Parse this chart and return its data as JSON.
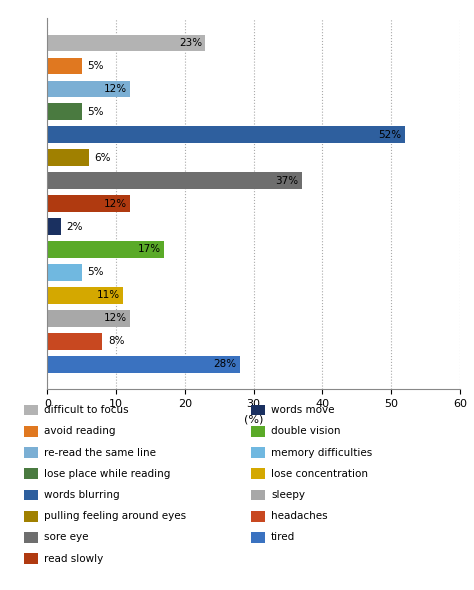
{
  "bars": [
    {
      "label": "difficult to focus",
      "value": 23,
      "color": "#b3b3b3"
    },
    {
      "label": "avoid reading",
      "value": 5,
      "color": "#e07820"
    },
    {
      "label": "re-read the same line",
      "value": 12,
      "color": "#7bafd4"
    },
    {
      "label": "lose place while reading",
      "value": 5,
      "color": "#4a7a40"
    },
    {
      "label": "words blurring",
      "value": 52,
      "color": "#2e5f9e"
    },
    {
      "label": "pulling feeling around eyes",
      "value": 6,
      "color": "#a08000"
    },
    {
      "label": "sore eye",
      "value": 37,
      "color": "#6e6e6e"
    },
    {
      "label": "read slowly",
      "value": 12,
      "color": "#b03a10"
    },
    {
      "label": "words move",
      "value": 2,
      "color": "#1a3060"
    },
    {
      "label": "double vision",
      "value": 17,
      "color": "#5aaa28"
    },
    {
      "label": "memory difficulties",
      "value": 5,
      "color": "#70b8e0"
    },
    {
      "label": "lose concentration",
      "value": 11,
      "color": "#d4a800"
    },
    {
      "label": "sleepy",
      "value": 12,
      "color": "#a8a8a8"
    },
    {
      "label": "headaches",
      "value": 8,
      "color": "#c84820"
    },
    {
      "label": "tired",
      "value": 28,
      "color": "#3a72c0"
    }
  ],
  "legend_left": [
    {
      "label": "difficult to focus",
      "color": "#b3b3b3"
    },
    {
      "label": "avoid reading",
      "color": "#e07820"
    },
    {
      "label": "re-read the same line",
      "color": "#7bafd4"
    },
    {
      "label": "lose place while reading",
      "color": "#4a7a40"
    },
    {
      "label": "words blurring",
      "color": "#2e5f9e"
    },
    {
      "label": "pulling feeling around eyes",
      "color": "#a08000"
    },
    {
      "label": "sore eye",
      "color": "#6e6e6e"
    },
    {
      "label": "read slowly",
      "color": "#b03a10"
    }
  ],
  "legend_right": [
    {
      "label": "words move",
      "color": "#1a3060"
    },
    {
      "label": "double vision",
      "color": "#5aaa28"
    },
    {
      "label": "memory difficulties",
      "color": "#70b8e0"
    },
    {
      "label": "lose concentration",
      "color": "#d4a800"
    },
    {
      "label": "sleepy",
      "color": "#a8a8a8"
    },
    {
      "label": "headaches",
      "color": "#c84820"
    },
    {
      "label": "tired",
      "color": "#3a72c0"
    }
  ],
  "xlabel": "(%)",
  "xlim": [
    0,
    60
  ],
  "xticks": [
    0,
    10,
    20,
    30,
    40,
    50,
    60
  ],
  "background_color": "#ffffff",
  "bar_height": 0.72,
  "label_fontsize": 7.5,
  "tick_fontsize": 8,
  "legend_fontsize": 7.5
}
